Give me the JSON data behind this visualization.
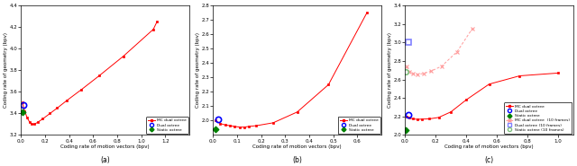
{
  "fig_width": 6.4,
  "fig_height": 1.85,
  "dpi": 100,
  "subplot_labels": [
    "(a)",
    "(b)",
    "(c)"
  ],
  "xlabel": "Coding rate of motion vectors (bpv)",
  "ylabel": "Coding rate of geometry (bpv)",
  "plots": [
    {
      "xlim": [
        0,
        1.4
      ],
      "ylim": [
        3.2,
        4.4
      ],
      "xticks": [
        0,
        0.2,
        0.4,
        0.6,
        0.8,
        1.0,
        1.2
      ],
      "yticks": [
        3.2,
        3.4,
        3.6,
        3.8,
        4.0,
        4.2,
        4.4
      ],
      "mc_x": [
        0.01,
        0.03,
        0.05,
        0.07,
        0.09,
        0.11,
        0.14,
        0.18,
        0.24,
        0.3,
        0.38,
        0.5,
        0.65,
        0.85,
        1.1,
        1.13
      ],
      "mc_y": [
        3.5,
        3.42,
        3.36,
        3.32,
        3.3,
        3.3,
        3.32,
        3.35,
        3.4,
        3.45,
        3.52,
        3.62,
        3.75,
        3.93,
        4.18,
        4.25
      ],
      "dual_x": [
        0.02
      ],
      "dual_y": [
        3.48
      ],
      "static_x": [
        0.01
      ],
      "static_y": [
        3.415
      ],
      "has_10frames": false
    },
    {
      "xlim": [
        0,
        0.7
      ],
      "ylim": [
        1.9,
        2.8
      ],
      "xticks": [
        0,
        0.1,
        0.2,
        0.3,
        0.4,
        0.5,
        0.6
      ],
      "yticks": [
        2.0,
        2.1,
        2.2,
        2.3,
        2.4,
        2.5,
        2.6,
        2.7,
        2.8
      ],
      "mc_x": [
        0.01,
        0.03,
        0.05,
        0.07,
        0.09,
        0.11,
        0.13,
        0.15,
        0.18,
        0.25,
        0.35,
        0.48,
        0.64
      ],
      "mc_y": [
        2.0,
        1.98,
        1.97,
        1.965,
        1.96,
        1.955,
        1.955,
        1.96,
        1.965,
        1.985,
        2.06,
        2.25,
        2.75
      ],
      "dual_x": [
        0.02
      ],
      "dual_y": [
        2.01
      ],
      "static_x": [
        0.01
      ],
      "static_y": [
        1.94
      ],
      "has_10frames": false
    },
    {
      "xlim": [
        0,
        1.1
      ],
      "ylim": [
        2.0,
        3.4
      ],
      "xticks": [
        0,
        0.2,
        0.4,
        0.6,
        0.8,
        1.0
      ],
      "yticks": [
        2.0,
        2.2,
        2.4,
        2.6,
        2.8,
        3.0,
        3.2,
        3.4
      ],
      "mc_x": [
        0.01,
        0.03,
        0.05,
        0.08,
        0.11,
        0.16,
        0.22,
        0.3,
        0.4,
        0.55,
        0.75,
        1.0
      ],
      "mc_y": [
        2.2,
        2.185,
        2.175,
        2.17,
        2.172,
        2.175,
        2.19,
        2.25,
        2.38,
        2.55,
        2.64,
        2.67
      ],
      "dual_x": [
        0.02
      ],
      "dual_y": [
        2.22
      ],
      "static_x": [
        0.005
      ],
      "static_y": [
        2.05
      ],
      "mc10_x": [
        0.01,
        0.03,
        0.05,
        0.08,
        0.12,
        0.17,
        0.24,
        0.34,
        0.44
      ],
      "mc10_y": [
        2.74,
        2.685,
        2.665,
        2.655,
        2.665,
        2.69,
        2.745,
        2.9,
        3.15
      ],
      "dual10_x": [
        0.02
      ],
      "dual10_y": [
        3.0
      ],
      "static10_x": [
        0.005
      ],
      "static10_y": [
        2.68
      ],
      "has_10frames": true
    }
  ],
  "colors": {
    "mc": "#FF0000",
    "dual": "#0000FF",
    "static": "#008000",
    "mc10": "#FF9999",
    "dual10": "#8080FF",
    "static10": "#80C080"
  }
}
